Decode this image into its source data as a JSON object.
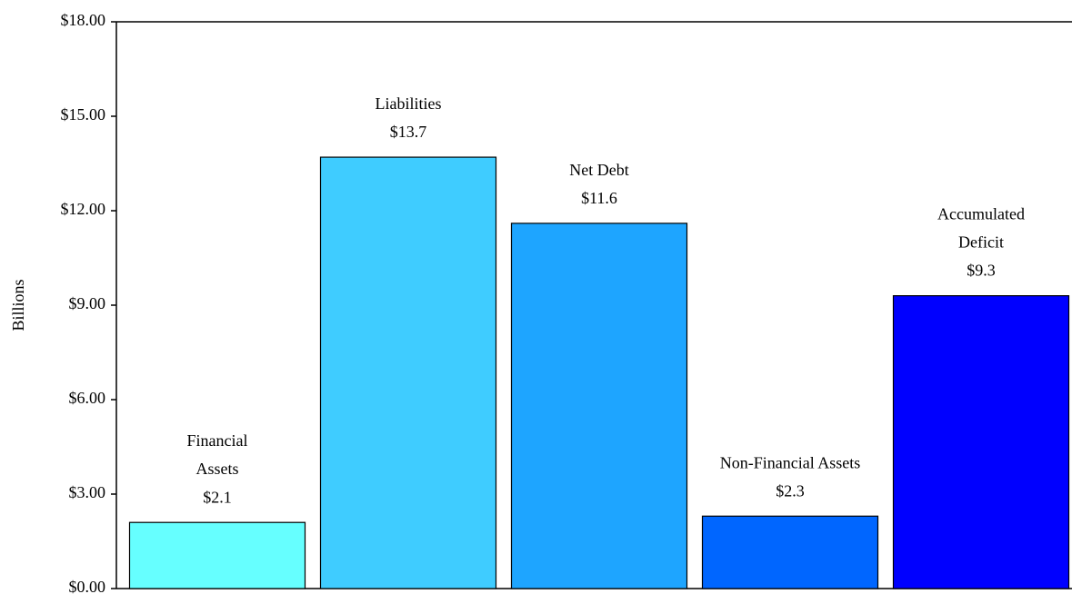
{
  "chart_data": {
    "type": "bar",
    "y_label": "Billions",
    "categories": [
      "Financial\nAssets",
      "Liabilities",
      "Net Debt",
      "Non-Financial Assets",
      "Accumulated\nDeficit"
    ],
    "values": [
      2.1,
      13.7,
      11.6,
      2.3,
      9.3
    ],
    "value_labels": [
      "$2.1",
      "$13.7",
      "$11.6",
      "$2.3",
      "$9.3"
    ],
    "colors": [
      "#66ffff",
      "#3fccff",
      "#1ea5ff",
      "#0066ff",
      "#0000ff"
    ],
    "ylim": [
      0,
      18
    ],
    "yticks": [
      {
        "value": 0,
        "label": "$0.00"
      },
      {
        "value": 3,
        "label": "$3.00"
      },
      {
        "value": 6,
        "label": "$6.00"
      },
      {
        "value": 9,
        "label": "$9.00"
      },
      {
        "value": 12,
        "label": "$12.00"
      },
      {
        "value": 15,
        "label": "$15.00"
      },
      {
        "value": 18,
        "label": "$18.00"
      }
    ],
    "grid": false
  }
}
